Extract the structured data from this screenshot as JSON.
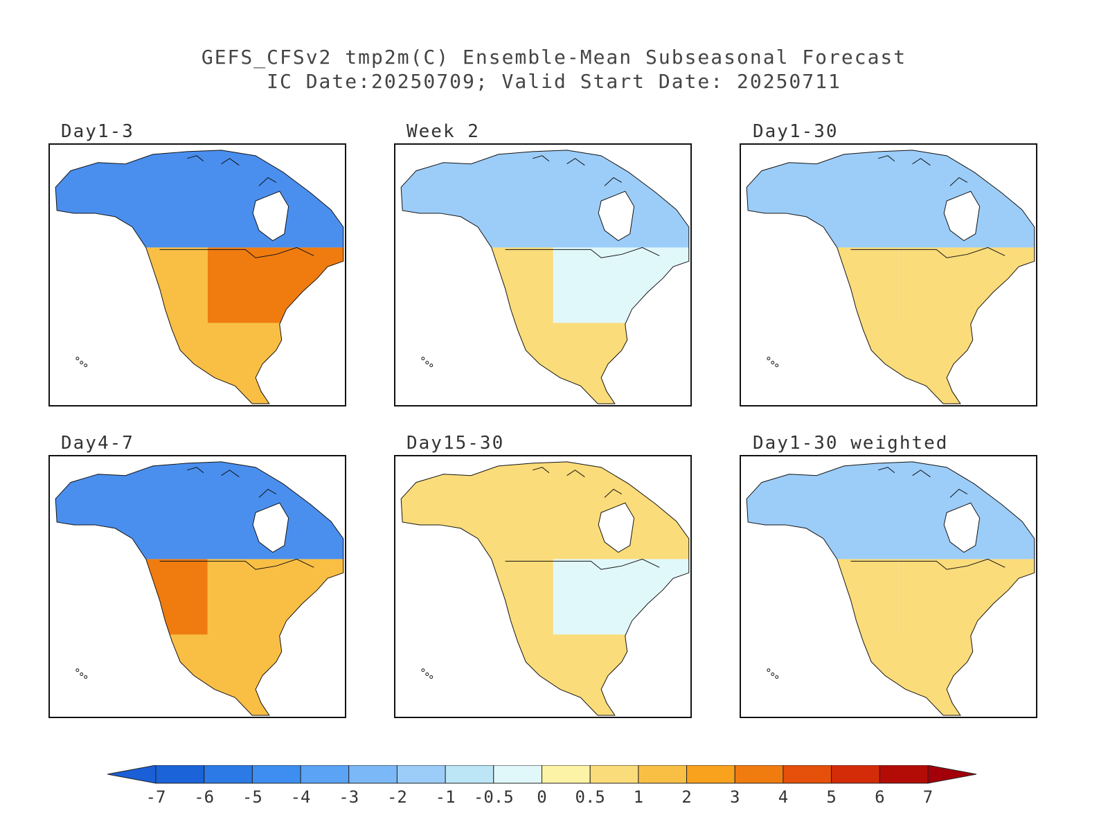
{
  "title": "GEFS_CFSv2 tmp2m(C) Ensemble-Mean Subseasonal Forecast",
  "subtitle": "IC Date:20250709; Valid Start Date: 20250711",
  "panels": [
    {
      "id": "day1-3",
      "label": "Day1-3",
      "north": "cold",
      "west": "warm",
      "east": "hot",
      "south": "warm"
    },
    {
      "id": "week2",
      "label": "Week 2",
      "north": "cool",
      "west": "mild",
      "east": "neutral",
      "south": "mild"
    },
    {
      "id": "day1-30",
      "label": "Day1-30",
      "north": "cool",
      "west": "mild",
      "east": "mild",
      "south": "mild"
    },
    {
      "id": "day4-7",
      "label": "Day4-7",
      "north": "cold",
      "west": "hot",
      "east": "warm",
      "south": "warm"
    },
    {
      "id": "day15-30",
      "label": "Day15-30",
      "north": "mild",
      "west": "mild",
      "east": "neutral",
      "south": "mild"
    },
    {
      "id": "day1-30-weighted",
      "label": "Day1-30 weighted",
      "north": "cool",
      "west": "mild",
      "east": "mild",
      "south": "mild"
    }
  ],
  "colorbar": {
    "labels": [
      "-7",
      "-6",
      "-5",
      "-4",
      "-3",
      "-2",
      "-1",
      "-0.5",
      "0",
      "0.5",
      "1",
      "2",
      "3",
      "4",
      "5",
      "6",
      "7"
    ],
    "colors": [
      "#1a63d8",
      "#2b7ae6",
      "#3d8ef0",
      "#5aa3f5",
      "#7bb8f8",
      "#9ccdf9",
      "#bce6f6",
      "#e1f8fb",
      "#fdf3a7",
      "#fbdc7a",
      "#f9bf45",
      "#f8a21d",
      "#f07c10",
      "#e5500a",
      "#d42c08",
      "#b30c06"
    ],
    "end_low": "#1a5fd6",
    "end_high": "#a4000a"
  },
  "anomaly_colors": {
    "cold": "#4a8fee",
    "cool": "#9ccdf9",
    "neutral": "#e1f8fb",
    "mild": "#fbdc7a",
    "warm": "#f9bf45",
    "hot": "#f07c10"
  }
}
